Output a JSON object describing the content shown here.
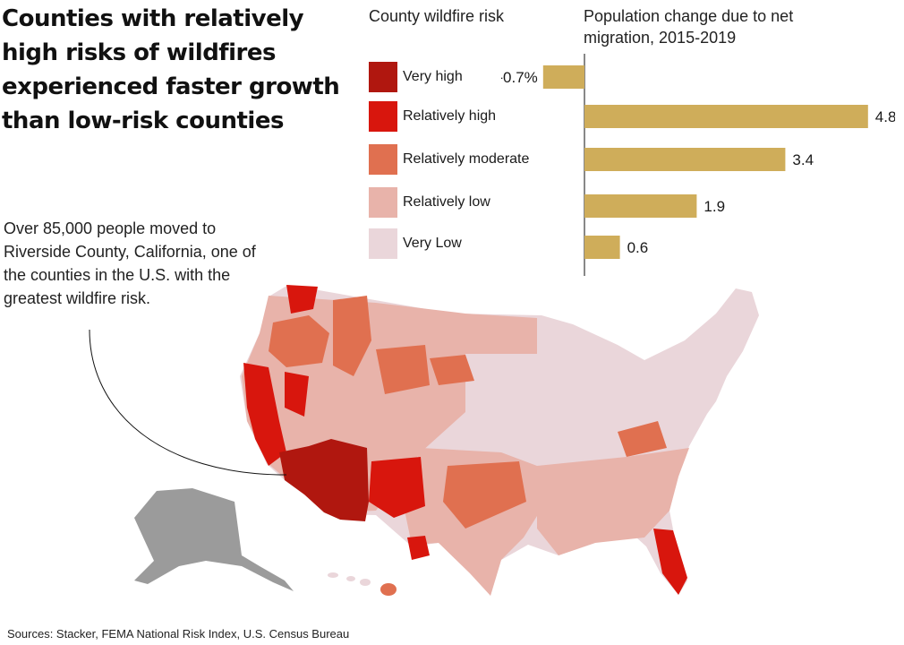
{
  "headline": "Counties with relatively high risks of wildfires experienced faster growth than low-risk counties",
  "legend": {
    "title": "County wildfire risk",
    "items": [
      {
        "label": "Very high",
        "color": "#b0170f"
      },
      {
        "label": "Relatively high",
        "color": "#d8160d"
      },
      {
        "label": "Relatively moderate",
        "color": "#e07050"
      },
      {
        "label": "Relatively low",
        "color": "#e8b3aa"
      },
      {
        "label": "Very Low",
        "color": "#ead6da"
      }
    ]
  },
  "chart_data": {
    "type": "bar",
    "orientation": "horizontal",
    "title": "Population change due to net migration, 2015-2019",
    "categories": [
      "Very high",
      "Relatively high",
      "Relatively moderate",
      "Relatively low",
      "Very Low"
    ],
    "values": [
      -0.7,
      4.8,
      3.4,
      1.9,
      0.6
    ],
    "value_labels": [
      "-0.7%",
      "4.8",
      "3.4",
      "1.9",
      "0.6"
    ],
    "bar_color": "#cfad5a",
    "xlim": [
      -1,
      5
    ],
    "grid": false
  },
  "callout": "Over 85,000 people moved to Riverside County, California, one of the counties in the U.S. with the greatest wildfire risk.",
  "sources": "Sources: Stacker, FEMA National Risk Index, U.S. Census Bureau",
  "map": {
    "no_data_color": "#9b9b9b",
    "highlight_county": "Riverside County, California"
  }
}
